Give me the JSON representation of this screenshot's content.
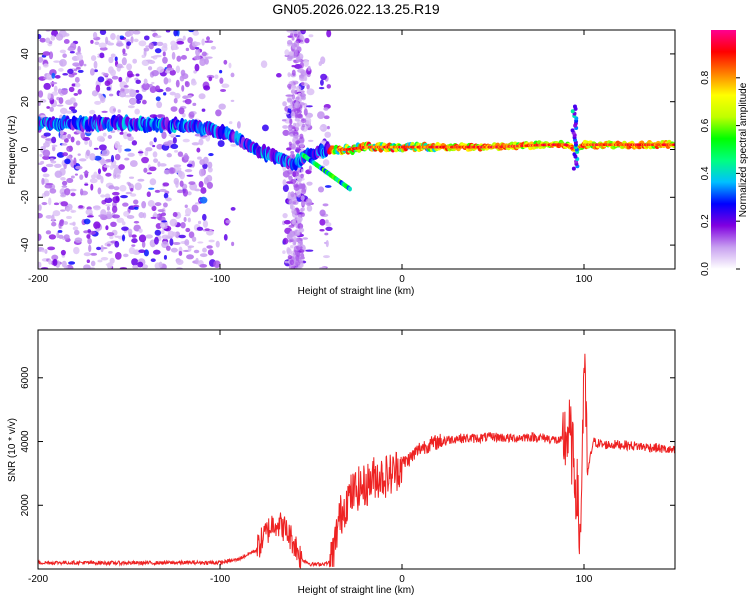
{
  "title": "GN05.2026.022.13.25.R19",
  "chart_data": [
    {
      "type": "heatmap",
      "name": "spectrogram",
      "xlabel": "Height of straight line (km)",
      "ylabel": "Frequency (Hz)",
      "xlim": [
        -200,
        150
      ],
      "ylim": [
        -50,
        50
      ],
      "xticks": [
        -200,
        -100,
        0,
        100
      ],
      "xtick_labels": [
        "-200",
        "-100",
        "0",
        "100"
      ],
      "yticks": [
        -40,
        -20,
        0,
        20,
        40
      ],
      "ytick_labels": [
        "-40",
        "-20",
        "0",
        "20",
        "40"
      ],
      "colorbar": {
        "label": "Normalized spectral amplitude",
        "range": [
          0,
          1
        ],
        "ticks": [
          0,
          0.2,
          0.4,
          0.6,
          0.8
        ],
        "tick_labels": [
          "0.0",
          "0.2",
          "0.4",
          "0.6",
          "0.8"
        ],
        "colormap": [
          "#ffffff",
          "#c8a0f0",
          "#8000e0",
          "#0000ff",
          "#00c0ff",
          "#00ff80",
          "#00ff00",
          "#c0ff00",
          "#ffff00",
          "#ff8000",
          "#ff0000",
          "#ff0090"
        ]
      },
      "ridge": {
        "description_points_x": [
          -200,
          -180,
          -150,
          -120,
          -100,
          -80,
          -60,
          -50,
          -40,
          -30,
          -20,
          0,
          20,
          50,
          80,
          90,
          95,
          100,
          120,
          150
        ],
        "description_points_y": [
          11,
          11,
          11,
          10,
          8,
          0,
          -6,
          -2,
          0,
          0,
          1,
          1,
          1,
          1,
          2,
          2,
          0,
          2,
          2,
          2
        ],
        "peak_amplitude_x": [
          -30,
          0,
          30,
          70
        ]
      }
    },
    {
      "type": "line",
      "name": "snr",
      "xlabel": "Height of straight line (km)",
      "ylabel": "SNR (10 * v/v)",
      "xlim": [
        -200,
        150
      ],
      "ylim": [
        0,
        7500
      ],
      "xticks": [
        -200,
        -100,
        0,
        100
      ],
      "xtick_labels": [
        "-200",
        "-100",
        "0",
        "100"
      ],
      "yticks": [
        2000,
        4000,
        6000
      ],
      "ytick_labels": [
        "2000",
        "4000",
        "6000"
      ],
      "color": "#ee2222",
      "series": [
        {
          "name": "SNR",
          "x": [
            -200,
            -180,
            -160,
            -140,
            -120,
            -100,
            -90,
            -80,
            -75,
            -70,
            -65,
            -60,
            -55,
            -50,
            -45,
            -40,
            -37,
            -35,
            -30,
            -25,
            -20,
            -15,
            -10,
            -5,
            0,
            5,
            10,
            15,
            20,
            30,
            40,
            50,
            60,
            70,
            80,
            88,
            92,
            96,
            98,
            100,
            102,
            105,
            110,
            120,
            130,
            140,
            150
          ],
          "values": [
            200,
            200,
            190,
            190,
            200,
            200,
            300,
            600,
            1100,
            1500,
            1300,
            900,
            300,
            150,
            150,
            200,
            700,
            1500,
            2200,
            2500,
            2600,
            2900,
            2900,
            3000,
            3300,
            3500,
            3800,
            3900,
            4000,
            4100,
            4100,
            4150,
            4100,
            4150,
            4100,
            4000,
            4300,
            2500,
            800,
            6500,
            3000,
            4000,
            3900,
            3900,
            3850,
            3800,
            3700
          ]
        }
      ]
    }
  ]
}
